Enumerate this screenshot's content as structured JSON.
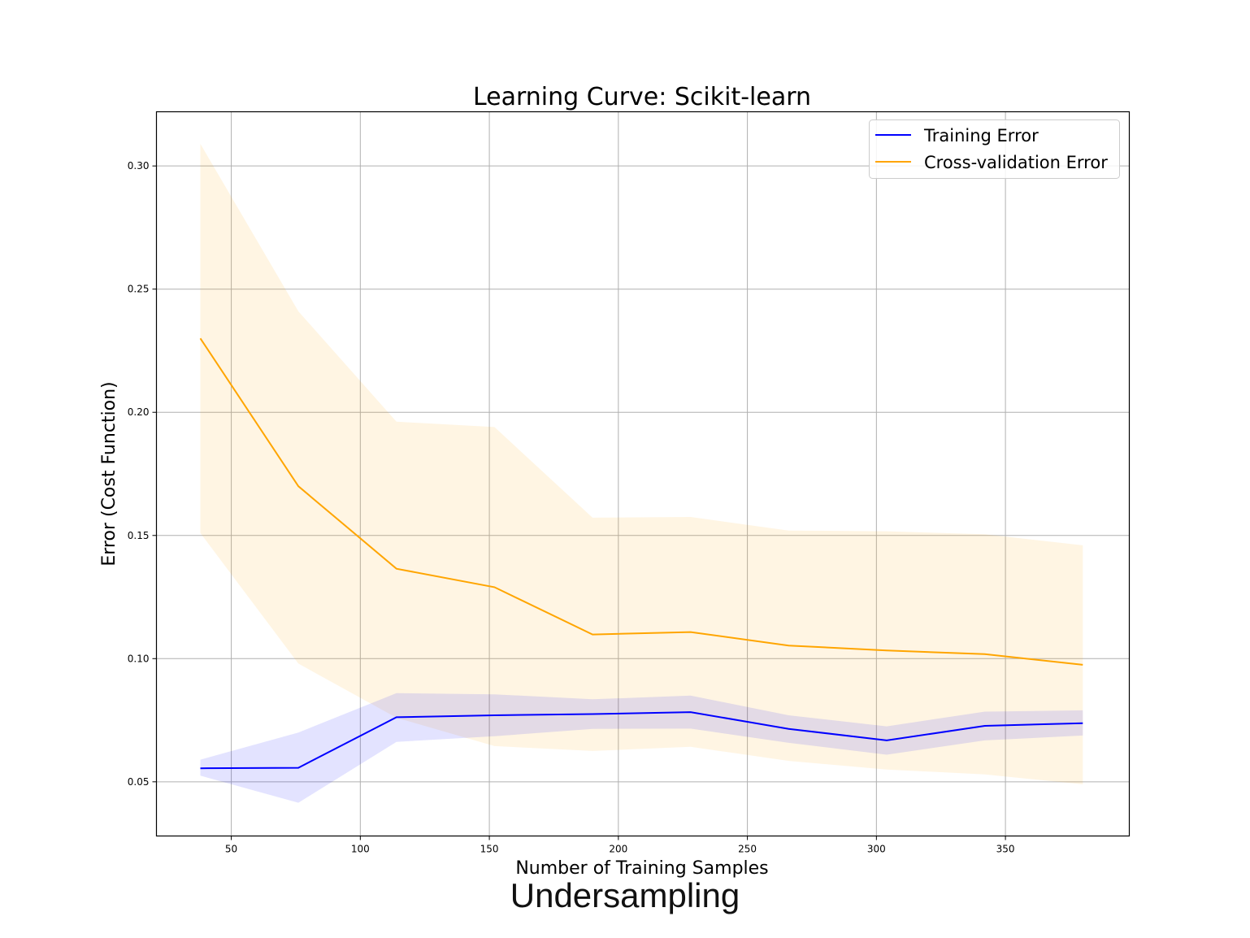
{
  "caption": "Undersampling",
  "colors": {
    "train": "#0000ff",
    "cv": "#ffa500",
    "grid": "#b0b0b0"
  },
  "chart_data": {
    "type": "line",
    "title": "Learning Curve: Scikit-learn",
    "xlabel": "Number of Training Samples",
    "ylabel": "Error (Cost Function)",
    "xlim": [
      21,
      398
    ],
    "ylim": [
      0.028,
      0.322
    ],
    "xticks": [
      50,
      100,
      150,
      200,
      250,
      300,
      350
    ],
    "yticks": [
      0.05,
      0.1,
      0.15,
      0.2,
      0.25,
      0.3
    ],
    "ytick_labels": [
      "0.05",
      "0.10",
      "0.15",
      "0.20",
      "0.25",
      "0.30"
    ],
    "grid": true,
    "legend_position": "top-right",
    "x": [
      38,
      76,
      114,
      152,
      190,
      228,
      266,
      304,
      342,
      380
    ],
    "series": [
      {
        "name": "Training Error",
        "color": "#0000ff",
        "values": [
          0.0555,
          0.0557,
          0.0762,
          0.077,
          0.0775,
          0.0783,
          0.0715,
          0.0668,
          0.0727,
          0.0738
        ],
        "band_upper": [
          0.059,
          0.07,
          0.086,
          0.0855,
          0.0835,
          0.085,
          0.077,
          0.0725,
          0.0785,
          0.079
        ],
        "band_lower": [
          0.0525,
          0.0415,
          0.0662,
          0.0685,
          0.0715,
          0.0716,
          0.0658,
          0.061,
          0.0668,
          0.0688
        ]
      },
      {
        "name": "Cross-validation Error",
        "color": "#ffa500",
        "values": [
          0.23,
          0.17,
          0.1365,
          0.129,
          0.1098,
          0.1108,
          0.1053,
          0.1033,
          0.1018,
          0.0975
        ],
        "band_upper": [
          0.309,
          0.241,
          0.1962,
          0.194,
          0.1572,
          0.1575,
          0.152,
          0.1517,
          0.1505,
          0.146
        ],
        "band_lower": [
          0.151,
          0.098,
          0.076,
          0.0645,
          0.0625,
          0.0642,
          0.0585,
          0.055,
          0.053,
          0.049
        ]
      }
    ]
  }
}
